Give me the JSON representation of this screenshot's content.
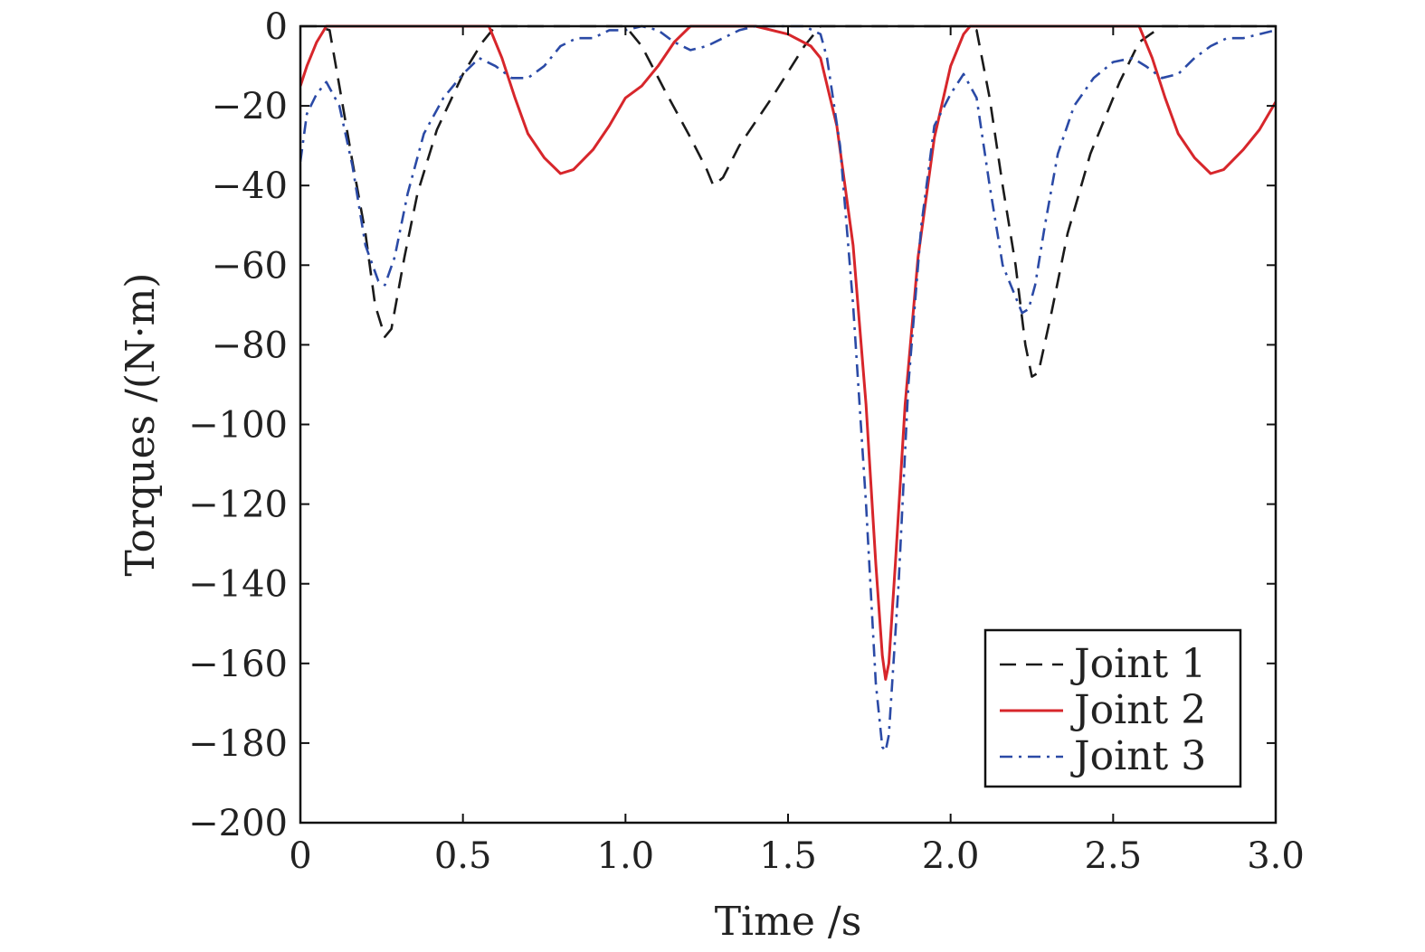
{
  "chart_data": {
    "type": "line",
    "title": "",
    "xlabel": "Time /s",
    "ylabel": "Torques /(N·m)",
    "xlim": [
      0,
      3.0
    ],
    "ylim": [
      -200,
      0
    ],
    "xticks": [
      0,
      0.5,
      1.0,
      1.5,
      2.0,
      2.5,
      3.0
    ],
    "xtick_labels": [
      "0",
      "0.5",
      "1.0",
      "1.5",
      "2.0",
      "2.5",
      "3.0"
    ],
    "yticks": [
      0,
      -20,
      -40,
      -60,
      -80,
      -100,
      -120,
      -140,
      -160,
      -180,
      -200
    ],
    "ytick_labels": [
      "0",
      "−20",
      "−40",
      "−60",
      "−80",
      "−100",
      "−120",
      "−140",
      "−160",
      "−180",
      "−200"
    ],
    "grid": false,
    "legend_position": "bottom-right",
    "series": [
      {
        "name": "Joint 1",
        "color": "#1a1a1a",
        "dash": "dashed",
        "x": [
          0.0,
          0.05,
          0.09,
          0.12,
          0.16,
          0.2,
          0.23,
          0.26,
          0.28,
          0.32,
          0.36,
          0.42,
          0.5,
          0.56,
          0.6,
          0.7,
          0.8,
          0.9,
          1.0,
          1.05,
          1.12,
          1.2,
          1.25,
          1.27,
          1.3,
          1.35,
          1.45,
          1.55,
          1.6,
          1.7,
          1.8,
          1.9,
          2.0,
          2.05,
          2.08,
          2.12,
          2.16,
          2.2,
          2.23,
          2.25,
          2.27,
          2.31,
          2.36,
          2.43,
          2.52,
          2.58,
          2.65,
          2.75,
          2.85,
          3.0
        ],
        "y": [
          0,
          0,
          -1,
          -15,
          -34,
          -52,
          -70,
          -78,
          -76,
          -58,
          -42,
          -26,
          -12,
          -4,
          0,
          0,
          0,
          0,
          0,
          -5,
          -16,
          -28,
          -36,
          -40,
          -38,
          -30,
          -18,
          -5,
          0,
          0,
          0,
          0,
          0,
          0,
          -1,
          -18,
          -40,
          -60,
          -80,
          -88,
          -87,
          -72,
          -52,
          -32,
          -14,
          -4,
          0,
          0,
          0,
          0
        ]
      },
      {
        "name": "Joint 2",
        "color": "#d7262b",
        "dash": "solid",
        "x": [
          0.0,
          0.02,
          0.05,
          0.08,
          0.1,
          0.3,
          0.5,
          0.58,
          0.62,
          0.66,
          0.7,
          0.75,
          0.8,
          0.84,
          0.9,
          0.95,
          1.0,
          1.05,
          1.1,
          1.15,
          1.2,
          1.3,
          1.4,
          1.5,
          1.57,
          1.6,
          1.65,
          1.7,
          1.74,
          1.77,
          1.79,
          1.8,
          1.81,
          1.83,
          1.86,
          1.9,
          1.95,
          2.0,
          2.04,
          2.06,
          2.1,
          2.3,
          2.5,
          2.58,
          2.62,
          2.66,
          2.7,
          2.75,
          2.8,
          2.84,
          2.9,
          2.95,
          3.0
        ],
        "y": [
          -15,
          -10,
          -4,
          0,
          0,
          0,
          0,
          0,
          -8,
          -18,
          -27,
          -33,
          -37,
          -36,
          -31,
          -25,
          -18,
          -15,
          -10,
          -4,
          0,
          0,
          0,
          -2,
          -5,
          -8,
          -25,
          -55,
          -95,
          -135,
          -158,
          -164,
          -160,
          -135,
          -95,
          -58,
          -28,
          -10,
          -2,
          0,
          0,
          0,
          0,
          0,
          -8,
          -18,
          -27,
          -33,
          -37,
          -36,
          -31,
          -26,
          -19
        ]
      },
      {
        "name": "Joint 3",
        "color": "#2b4aa6",
        "dash": "dashdot",
        "x": [
          0.0,
          0.02,
          0.05,
          0.08,
          0.12,
          0.16,
          0.2,
          0.24,
          0.26,
          0.29,
          0.33,
          0.38,
          0.44,
          0.5,
          0.55,
          0.6,
          0.65,
          0.7,
          0.75,
          0.8,
          0.85,
          0.9,
          0.95,
          1.0,
          1.05,
          1.1,
          1.15,
          1.2,
          1.25,
          1.3,
          1.35,
          1.4,
          1.45,
          1.5,
          1.55,
          1.6,
          1.62,
          1.66,
          1.7,
          1.74,
          1.77,
          1.79,
          1.8,
          1.81,
          1.84,
          1.87,
          1.91,
          1.95,
          2.0,
          2.04,
          2.08,
          2.12,
          2.16,
          2.2,
          2.22,
          2.24,
          2.26,
          2.29,
          2.33,
          2.38,
          2.44,
          2.5,
          2.56,
          2.6,
          2.65,
          2.7,
          2.75,
          2.8,
          2.85,
          2.9,
          2.95,
          3.0
        ],
        "y": [
          -34,
          -22,
          -17,
          -14,
          -20,
          -35,
          -55,
          -64,
          -65,
          -58,
          -42,
          -27,
          -18,
          -12,
          -8,
          -10,
          -13,
          -13,
          -10,
          -5,
          -3,
          -3,
          -1,
          -1,
          0,
          -1,
          -4,
          -6,
          -5,
          -3,
          -1,
          0,
          0,
          0,
          0,
          -2,
          -8,
          -30,
          -70,
          -120,
          -165,
          -181,
          -182,
          -178,
          -140,
          -90,
          -50,
          -25,
          -17,
          -12,
          -18,
          -40,
          -60,
          -68,
          -72,
          -71,
          -65,
          -50,
          -32,
          -20,
          -13,
          -9,
          -8,
          -10,
          -13,
          -12,
          -8,
          -5,
          -3,
          -3,
          -2,
          -1
        ]
      }
    ]
  }
}
